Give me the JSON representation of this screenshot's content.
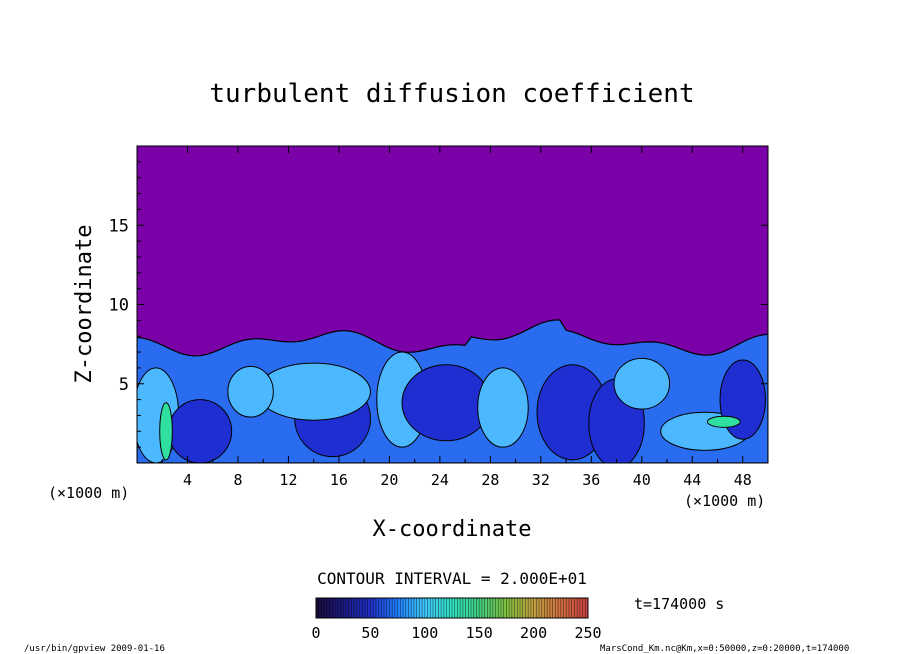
{
  "chart_data": {
    "type": "heatmap",
    "title": "turbulent diffusion coefficient",
    "xlabel": "X-coordinate",
    "ylabel": "Z-coordinate",
    "x_unit_left": "(×1000 m)",
    "x_unit_right": "(×1000 m)",
    "xlim": [
      0,
      50
    ],
    "ylim": [
      0,
      20
    ],
    "x_ticks": [
      "4",
      "8",
      "12",
      "16",
      "20",
      "24",
      "28",
      "32",
      "36",
      "40",
      "44",
      "48"
    ],
    "y_ticks": [
      "5",
      "10",
      "15"
    ],
    "contour_interval": "CONTOUR INTERVAL = 2.000E+01",
    "time_label": "t=174000 s",
    "colorbar": {
      "min": 0,
      "max": 250,
      "ticks": [
        "0",
        "50",
        "100",
        "150",
        "200",
        "250"
      ],
      "colors": [
        "#1a0a3a",
        "#1a1a80",
        "#2030c8",
        "#2080ff",
        "#40c8ff",
        "#30e0c0",
        "#40d080",
        "#80c040",
        "#c0a040",
        "#d07040",
        "#c84040"
      ]
    },
    "field_colors": {
      "background": "#7a00a8",
      "low": "#1e2ed0",
      "mid": "#2a6cf0",
      "high": "#4cb8ff",
      "peak": "#30e0a0"
    }
  },
  "footer": {
    "left": "/usr/bin/gpview  2009-01-16",
    "right": "MarsCond_Km.nc@Km,x=0:50000,z=0:20000,t=174000"
  }
}
